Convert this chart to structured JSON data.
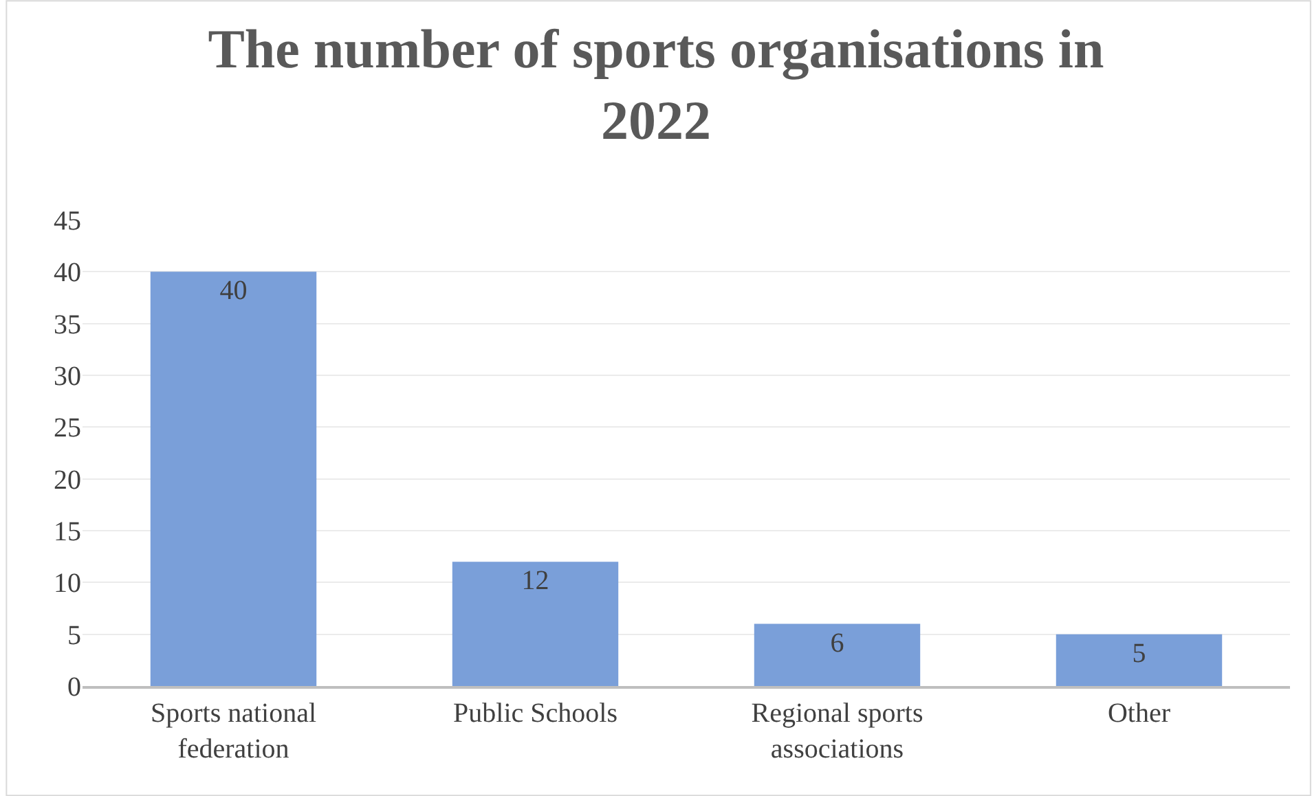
{
  "chart_data": {
    "type": "bar",
    "title": "The number of sports organisations in 2022",
    "categories": [
      "Sports national federation",
      "Public Schools",
      "Regional sports associations",
      "Other"
    ],
    "values": [
      40,
      12,
      6,
      5
    ],
    "color": "#7a9fd9",
    "ylim": [
      0,
      45
    ],
    "yticks": [
      0,
      5,
      10,
      15,
      20,
      25,
      30,
      35,
      40,
      45
    ],
    "grid": "y",
    "data_labels": true
  }
}
